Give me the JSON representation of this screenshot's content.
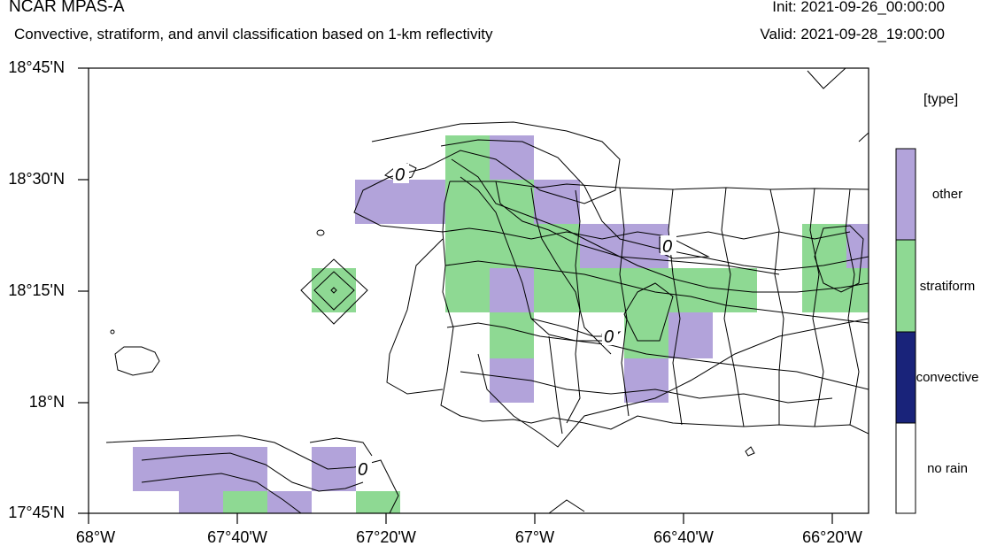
{
  "header": {
    "model": "NCAR MPAS-A",
    "subtitle": "Convective, stratiform, and anvil classification based on 1-km reflectivity",
    "init": "Init: 2021-09-26_00:00:00",
    "valid": "Valid: 2021-09-28_19:00:00"
  },
  "axes": {
    "lat_labels": [
      "18°45'N",
      "18°30'N",
      "18°15'N",
      "18°N",
      "17°45'N"
    ],
    "lon_labels": [
      "68°W",
      "67°40'W",
      "67°20'W",
      "67°W",
      "66°40'W",
      "66°20'W"
    ]
  },
  "legend": {
    "unit": "[type]",
    "entries": [
      {
        "label": "other",
        "color": "#b2a3da"
      },
      {
        "label": "stratiform",
        "color": "#8ed993"
      },
      {
        "label": "convective",
        "color": "#19237a"
      },
      {
        "label": "no rain",
        "color": "#ffffff"
      }
    ]
  },
  "contour_labels": [
    "0",
    "0",
    "0",
    "0"
  ],
  "colors": {
    "other": "#b2a3da",
    "stratiform": "#8ed993",
    "convective": "#19237a",
    "no_rain": "#ffffff",
    "line": "#000000"
  }
}
